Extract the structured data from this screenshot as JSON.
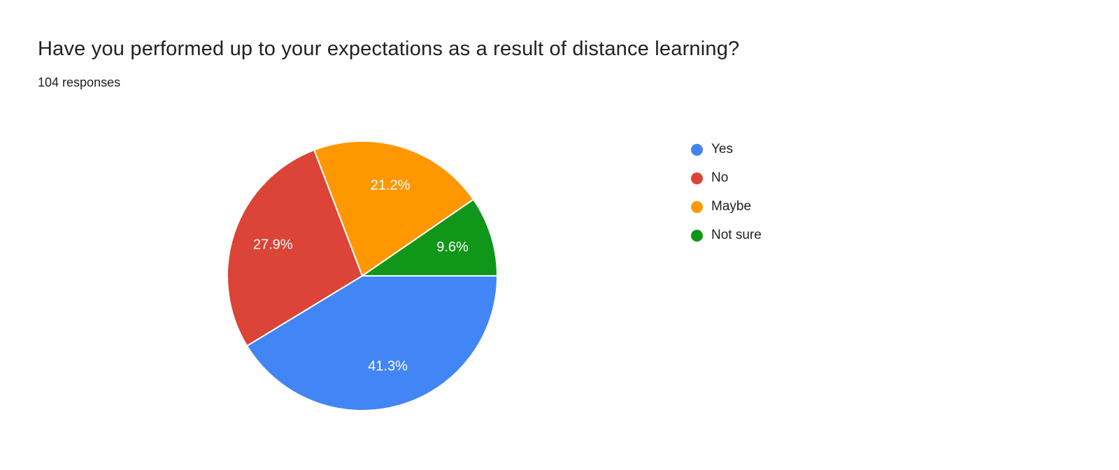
{
  "header": {
    "title": "Have you performed up to your expectations as a result of distance learning?",
    "responses": "104 responses"
  },
  "chart_data": {
    "type": "pie",
    "categories": [
      "Yes",
      "No",
      "Maybe",
      "Not sure"
    ],
    "values": [
      41.3,
      27.9,
      21.2,
      9.6
    ],
    "slice_labels": [
      "41.3%",
      "27.9%",
      "21.2%",
      "9.6%"
    ],
    "colors": [
      "#4285F4",
      "#DB4437",
      "#FF9800",
      "#109618"
    ],
    "total_responses": 104,
    "legend_position": "right",
    "start_angle_deg": 0,
    "direction": "clockwise",
    "slice_label_color": "#ffffff",
    "slice_border_color": "#ffffff"
  }
}
